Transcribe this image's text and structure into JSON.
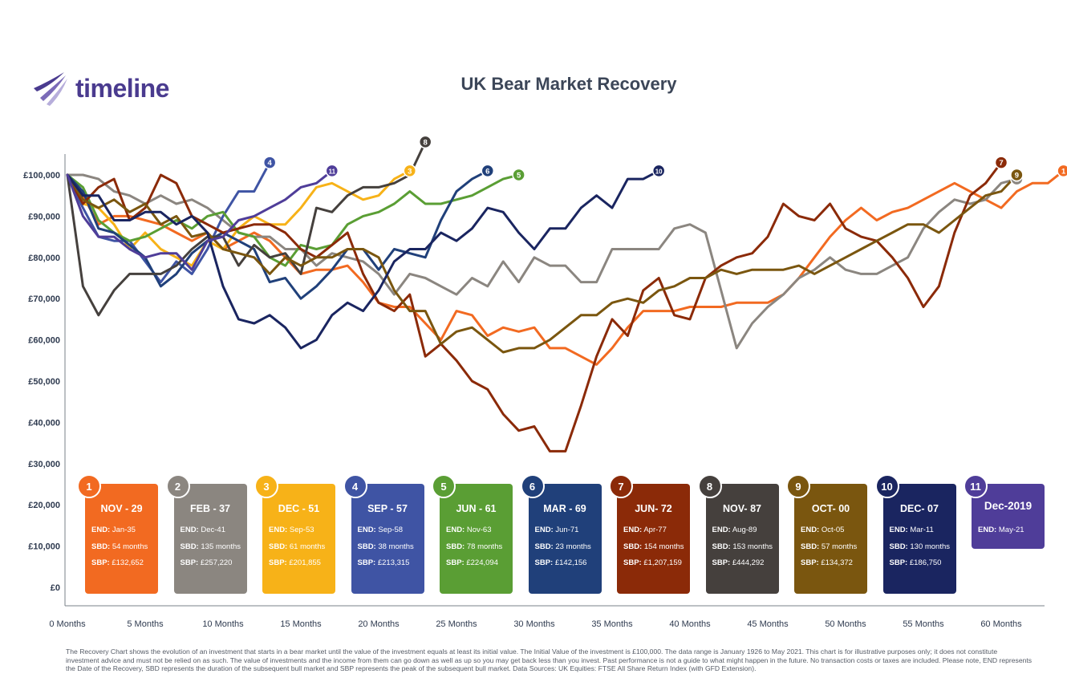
{
  "logo": {
    "text": "timeline"
  },
  "title": "UK Bear Market Recovery",
  "colors": {
    "1": "#f26a21",
    "2": "#8b8680",
    "3": "#f7b218",
    "4": "#3f54a4",
    "5": "#5a9e34",
    "6": "#20407a",
    "7": "#8b2a08",
    "8": "#45403d",
    "9": "#7a560f",
    "10": "#1a2560",
    "11": "#4f3d99"
  },
  "chart_data": {
    "type": "line",
    "title": "UK Bear Market Recovery",
    "xlabel": "",
    "ylabel": "",
    "xlim": [
      0,
      63
    ],
    "ylim": [
      0,
      105000
    ],
    "x_ticks": [
      "0 Months",
      "5 Months",
      "10 Months",
      "15 Months",
      "20 Months",
      "25 Months",
      "30 Months",
      "35 Months",
      "40 Months",
      "45 Months",
      "50 Months",
      "55 Months",
      "60 Months"
    ],
    "y_ticks": [
      "£0",
      "£10,000",
      "£20,000",
      "£30,000",
      "£40,000",
      "£50,000",
      "£60,000",
      "£70,000",
      "£80,000",
      "£90,000",
      "£100,000"
    ],
    "series": [
      {
        "id": "1",
        "values": [
          100000,
          95000,
          88000,
          90000,
          90000,
          89000,
          88000,
          86000,
          84000,
          86000,
          82000,
          84000,
          86000,
          84000,
          80000,
          76000,
          77000,
          77000,
          78000,
          74000,
          69000,
          68000,
          68000,
          64000,
          60000,
          67000,
          66000,
          61000,
          63000,
          62000,
          63000,
          58000,
          58000,
          56000,
          54000,
          58000,
          63000,
          67000,
          67000,
          67000,
          68000,
          68000,
          68000,
          69000,
          69000,
          69000,
          71000,
          75000,
          80000,
          85000,
          89000,
          92000,
          89000,
          91000,
          92000,
          94000,
          96000,
          98000,
          96000,
          94000,
          92000,
          96000,
          98000,
          98000,
          101000
        ]
      },
      {
        "id": "2",
        "values": [
          100000,
          100000,
          99000,
          96000,
          95000,
          93000,
          95000,
          93000,
          94000,
          92000,
          89000,
          86000,
          85000,
          85000,
          82000,
          82000,
          78000,
          81000,
          80000,
          79000,
          76000,
          71000,
          76000,
          75000,
          73000,
          71000,
          75000,
          73000,
          79000,
          74000,
          80000,
          78000,
          78000,
          74000,
          74000,
          82000,
          82000,
          82000,
          82000,
          87000,
          88000,
          86000,
          72000,
          58000,
          64000,
          68000,
          71000,
          75000,
          77000,
          80000,
          77000,
          76000,
          76000,
          78000,
          80000,
          87000,
          91000,
          94000,
          93000,
          94000,
          98000,
          99000
        ]
      },
      {
        "id": "3",
        "values": [
          100000,
          93000,
          92000,
          88000,
          82000,
          86000,
          82000,
          80000,
          78000,
          84000,
          82000,
          87000,
          90000,
          88000,
          88000,
          92000,
          97000,
          98000,
          96000,
          94000,
          95000,
          99000,
          101000
        ]
      },
      {
        "id": "4",
        "values": [
          100000,
          92000,
          85000,
          84000,
          84000,
          79000,
          74000,
          79000,
          76000,
          82000,
          90000,
          96000,
          96000,
          103000
        ]
      },
      {
        "id": "5",
        "values": [
          100000,
          97000,
          89000,
          86000,
          84000,
          85000,
          87000,
          89000,
          87000,
          90000,
          91000,
          86000,
          85000,
          80000,
          78000,
          83000,
          82000,
          83000,
          88000,
          90000,
          91000,
          93000,
          96000,
          93000,
          93000,
          94000,
          95000,
          97000,
          99000,
          100000
        ]
      },
      {
        "id": "6",
        "values": [
          100000,
          96000,
          87000,
          86000,
          83000,
          80000,
          73000,
          76000,
          81000,
          84000,
          86000,
          84000,
          82000,
          74000,
          75000,
          70000,
          73000,
          77000,
          82000,
          82000,
          77000,
          82000,
          81000,
          80000,
          89000,
          96000,
          99000,
          101000
        ]
      },
      {
        "id": "7",
        "values": [
          100000,
          93000,
          97000,
          99000,
          89000,
          92000,
          100000,
          98000,
          90000,
          88000,
          86000,
          87000,
          88000,
          88000,
          86000,
          82000,
          80000,
          83000,
          86000,
          76000,
          69000,
          67000,
          71000,
          56000,
          59000,
          55000,
          50000,
          48000,
          42000,
          38000,
          39000,
          33000,
          33000,
          44000,
          56000,
          65000,
          61000,
          72000,
          75000,
          66000,
          65000,
          75000,
          78000,
          80000,
          81000,
          85000,
          93000,
          90000,
          89000,
          93000,
          87000,
          85000,
          84000,
          80000,
          75000,
          68000,
          73000,
          86000,
          95000,
          98000,
          103000
        ]
      },
      {
        "id": "8",
        "values": [
          100000,
          73000,
          66000,
          72000,
          76000,
          76000,
          76000,
          78000,
          82000,
          85000,
          85000,
          78000,
          83000,
          80000,
          81000,
          76000,
          92000,
          91000,
          95000,
          97000,
          97000,
          98000,
          100000,
          108000
        ]
      },
      {
        "id": "9",
        "values": [
          100000,
          94000,
          92000,
          94000,
          91000,
          93000,
          88000,
          90000,
          85000,
          86000,
          82000,
          81000,
          80000,
          76000,
          80000,
          78000,
          80000,
          80000,
          82000,
          82000,
          80000,
          72000,
          67000,
          67000,
          59000,
          62000,
          63000,
          60000,
          57000,
          58000,
          58000,
          60000,
          63000,
          66000,
          66000,
          69000,
          70000,
          69000,
          72000,
          73000,
          75000,
          75000,
          77000,
          76000,
          77000,
          77000,
          77000,
          78000,
          76000,
          78000,
          80000,
          82000,
          84000,
          86000,
          88000,
          88000,
          86000,
          89000,
          92000,
          95000,
          96000,
          100000
        ]
      },
      {
        "id": "10",
        "values": [
          100000,
          95000,
          95000,
          89000,
          89000,
          91000,
          91000,
          88000,
          90000,
          86000,
          73000,
          65000,
          64000,
          66000,
          63000,
          58000,
          60000,
          66000,
          69000,
          67000,
          72000,
          79000,
          82000,
          82000,
          86000,
          84000,
          87000,
          92000,
          91000,
          86000,
          82000,
          87000,
          87000,
          92000,
          95000,
          92000,
          99000,
          99000,
          101000
        ]
      },
      {
        "id": "11",
        "values": [
          100000,
          90000,
          85000,
          85000,
          82000,
          80000,
          81000,
          81000,
          77000,
          84000,
          85000,
          89000,
          90000,
          92000,
          94000,
          97000,
          98000,
          101000
        ]
      }
    ]
  },
  "cards": [
    {
      "num": "1",
      "date": "NOV - 29",
      "end_label": "END:",
      "end": "Jan-35",
      "sbd_label": "SBD:",
      "sbd": "54 months",
      "sbp_label": "SBP:",
      "sbp": "£132,652"
    },
    {
      "num": "2",
      "date": "FEB - 37",
      "end_label": "END:",
      "end": "Dec-41",
      "sbd_label": "SBD:",
      "sbd": "135 months",
      "sbp_label": "SBP:",
      "sbp": "£257,220"
    },
    {
      "num": "3",
      "date": "DEC - 51",
      "end_label": "END:",
      "end": "Sep-53",
      "sbd_label": "SBD:",
      "sbd": "61 months",
      "sbp_label": "SBP:",
      "sbp": "£201,855"
    },
    {
      "num": "4",
      "date": "SEP - 57",
      "end_label": "END:",
      "end": "Sep-58",
      "sbd_label": "SBD:",
      "sbd": "38 months",
      "sbp_label": "SBP:",
      "sbp": "£213,315"
    },
    {
      "num": "5",
      "date": "JUN - 61",
      "end_label": "END:",
      "end": "Nov-63",
      "sbd_label": "SBD:",
      "sbd": "78 months",
      "sbp_label": "SBP:",
      "sbp": "£224,094"
    },
    {
      "num": "6",
      "date": "MAR - 69",
      "end_label": "END:",
      "end": "Jun-71",
      "sbd_label": "SBD:",
      "sbd": "23 months",
      "sbp_label": "SBP:",
      "sbp": "£142,156"
    },
    {
      "num": "7",
      "date": "JUN- 72",
      "end_label": "END:",
      "end": "Apr-77",
      "sbd_label": "SBD:",
      "sbd": "154 months",
      "sbp_label": "SBP:",
      "sbp": "£1,207,159"
    },
    {
      "num": "8",
      "date": "NOV- 87",
      "end_label": "END:",
      "end": "Aug-89",
      "sbd_label": "SBD:",
      "sbd": "153 months",
      "sbp_label": "SBP:",
      "sbp": "£444,292"
    },
    {
      "num": "9",
      "date": "OCT- 00",
      "end_label": "END:",
      "end": "Oct-05",
      "sbd_label": "SBD:",
      "sbd": "57 months",
      "sbp_label": "SBP:",
      "sbp": "£134,372"
    },
    {
      "num": "10",
      "date": "DEC- 07",
      "end_label": "END:",
      "end": "Mar-11",
      "sbd_label": "SBD:",
      "sbd": "130 months",
      "sbp_label": "SBP:",
      "sbp": "£186,750"
    },
    {
      "num": "11",
      "date": "Dec-2019",
      "end_label": "END:",
      "end": "May-21"
    }
  ],
  "footnote": "The Recovery Chart shows the evolution of an investment that starts in a bear market until the value of the investment equals at least its initial value. The Initial Value of the investment is £100,000. The data range is January 1926 to May 2021. This chart is for illustrative purposes only; it does not constitute investment advice and must not be relied on as such. The value of investments and the income from them can go down as well as up so you may get back less than you invest. Past performance is not a guide to what might happen in the future. No transaction costs or taxes are included. Please note, END represents the Date of the Recovery, SBD represents the duration of the subsequent bull market and SBP represents the peak of the subsequent bull market. Data Sources: UK Equities: FTSE All Share Return Index (with GFD Extension)."
}
